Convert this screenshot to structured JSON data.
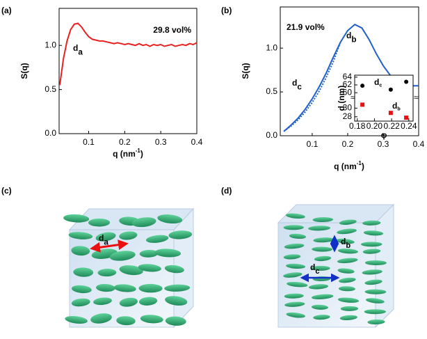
{
  "chart_data": [
    {
      "type": "line",
      "panel_label": "(a)",
      "ylabel": "S(q)",
      "xlabel": {
        "text": "q (nm",
        "sup": "-1",
        "end": ")"
      },
      "annotation": "29.8 vol%",
      "peak_labels": [
        {
          "main": "d",
          "sub": "a"
        }
      ],
      "xlim": [
        0.018,
        0.4
      ],
      "ylim": [
        0,
        1.42
      ],
      "xticks": [
        0.1,
        0.2,
        0.3,
        0.4
      ],
      "yticks": [
        {
          "value": 0,
          "label": "0.0"
        },
        0.5,
        {
          "value": 1,
          "label": "1.0"
        }
      ],
      "x": [
        0.02,
        0.03,
        0.04,
        0.05,
        0.06,
        0.07,
        0.08,
        0.09,
        0.1,
        0.11,
        0.12,
        0.13,
        0.14,
        0.15,
        0.16,
        0.17,
        0.18,
        0.19,
        0.2,
        0.21,
        0.22,
        0.23,
        0.24,
        0.25,
        0.26,
        0.27,
        0.28,
        0.29,
        0.3,
        0.31,
        0.32,
        0.33,
        0.34,
        0.35,
        0.36,
        0.37,
        0.38,
        0.39,
        0.4
      ],
      "series": [
        {
          "color": "#e8201f",
          "style": "solid",
          "values": [
            0.55,
            0.85,
            1.05,
            1.18,
            1.24,
            1.25,
            1.21,
            1.15,
            1.1,
            1.07,
            1.06,
            1.05,
            1.05,
            1.04,
            1.03,
            1.02,
            1.03,
            1.02,
            1.01,
            1.02,
            1.01,
            1.0,
            1.02,
            1.0,
            1.01,
            0.99,
            1.01,
            1.0,
            1.01,
            0.99,
            1.0,
            1.01,
            0.99,
            1.0,
            1.01,
            1.0,
            1.02,
            1.01,
            1.03
          ]
        }
      ]
    },
    {
      "type": "line",
      "panel_label": "(b)",
      "ylabel": "S(q)",
      "xlabel": {
        "text": "q (nm",
        "sup": "-1",
        "end": ")"
      },
      "annotation": "21.9 vol%",
      "peak_labels": [
        {
          "main": "d",
          "sub": "b"
        },
        {
          "main": "d",
          "sub": "c"
        }
      ],
      "xlim": [
        0.01,
        0.4
      ],
      "ylim": [
        0,
        1.47
      ],
      "xticks": [
        0.1,
        0.2,
        0.3,
        0.4
      ],
      "yticks": [
        {
          "value": 0,
          "label": "0.0"
        },
        0.5,
        {
          "value": 1,
          "label": "1.0"
        }
      ],
      "x": [
        0.02,
        0.04,
        0.06,
        0.08,
        0.1,
        0.12,
        0.14,
        0.16,
        0.18,
        0.2,
        0.22,
        0.24,
        0.26,
        0.28,
        0.3,
        0.32,
        0.34,
        0.36,
        0.38,
        0.4
      ],
      "series": [
        {
          "color": "#2060c8",
          "style": "solid",
          "values": [
            0.05,
            0.12,
            0.2,
            0.3,
            0.42,
            0.56,
            0.72,
            0.9,
            1.07,
            1.2,
            1.27,
            1.23,
            1.1,
            0.94,
            0.8,
            0.69,
            0.62,
            0.58,
            0.57,
            0.57
          ]
        },
        {
          "color": "#2060c8",
          "style": "dotted",
          "values": [
            0.05,
            0.11,
            0.18,
            0.27,
            0.38,
            0.51,
            0.67,
            0.85,
            1.07,
            null,
            null,
            null,
            null,
            null,
            null,
            null,
            null,
            null,
            null,
            null
          ]
        }
      ]
    },
    {
      "type": "scatter",
      "ylabel": "d (nm)",
      "xlabel": "φ",
      "xlim": [
        0.177,
        0.245
      ],
      "ylim": [
        27,
        64.5
      ],
      "y_break": [
        31.5,
        59.5
      ],
      "xticks": [
        0.18,
        {
          "value": 0.2,
          "label": "0.20"
        },
        0.22,
        0.24
      ],
      "yticks": [
        28,
        30,
        60,
        62,
        64
      ],
      "x": [
        0.186,
        0.219,
        0.237
      ],
      "series": [
        {
          "label": {
            "main": "d",
            "sub": "c"
          },
          "color": "#000000",
          "values": [
            61.8,
            60.8,
            62.8
          ]
        },
        {
          "label": {
            "main": "d",
            "sub": "b"
          },
          "color": "#e81010",
          "values": [
            30.8,
            28.9,
            27.8
          ]
        }
      ]
    }
  ],
  "illustrations": [
    {
      "panel_label": "(c)",
      "labels": [
        {
          "main": "d",
          "sub": "a"
        }
      ]
    },
    {
      "panel_label": "(d)",
      "labels": [
        {
          "main": "d",
          "sub": "b"
        },
        {
          "main": "d",
          "sub": "c"
        }
      ]
    }
  ]
}
